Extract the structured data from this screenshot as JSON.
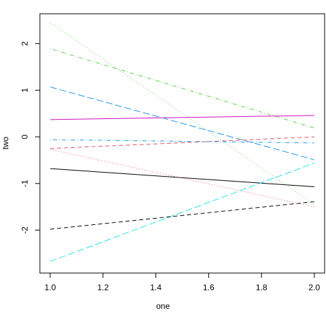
{
  "chart_data": {
    "type": "line",
    "x_label": "one",
    "y_label": "two",
    "x": [
      1,
      2
    ],
    "series": [
      {
        "color": "#000000",
        "lty": "solid",
        "values": [
          -0.68,
          -1.07
        ]
      },
      {
        "color": "#DF536B",
        "lty": "dashed",
        "values": [
          -0.25,
          0.0
        ]
      },
      {
        "color": "#61D04F",
        "lty": "dotted",
        "values": [
          2.45,
          -1.45
        ]
      },
      {
        "color": "#2297E6",
        "lty": "dotdash",
        "values": [
          -0.06,
          -0.13
        ]
      },
      {
        "color": "#28E2E5",
        "lty": "longdash",
        "values": [
          -2.67,
          -0.56
        ]
      },
      {
        "color": "#CD0BBC",
        "lty": "solid",
        "values": [
          0.37,
          0.46
        ]
      },
      {
        "color": "#000000",
        "lty": "dashed",
        "values": [
          -1.98,
          -1.39
        ]
      },
      {
        "color": "#DF536B",
        "lty": "dotted",
        "values": [
          -0.27,
          -1.5
        ]
      },
      {
        "color": "#61D04F",
        "lty": "dotdash",
        "values": [
          1.89,
          0.19
        ]
      },
      {
        "color": "#2297E6",
        "lty": "longdash",
        "values": [
          1.07,
          -0.49
        ]
      }
    ],
    "xlim": [
      0.961,
      2.039
    ],
    "ylim": [
      -2.92,
      2.64
    ],
    "xticks": [
      {
        "value": 1,
        "label": "1.0"
      },
      {
        "value": 1.2,
        "label": "1.2"
      },
      {
        "value": 1.4,
        "label": "1.4"
      },
      {
        "value": 1.6,
        "label": "1.6"
      },
      {
        "value": 1.8,
        "label": "1.8"
      },
      {
        "value": 2,
        "label": "2.0"
      }
    ],
    "yticks": [
      -2,
      -1,
      0,
      1,
      2
    ]
  }
}
